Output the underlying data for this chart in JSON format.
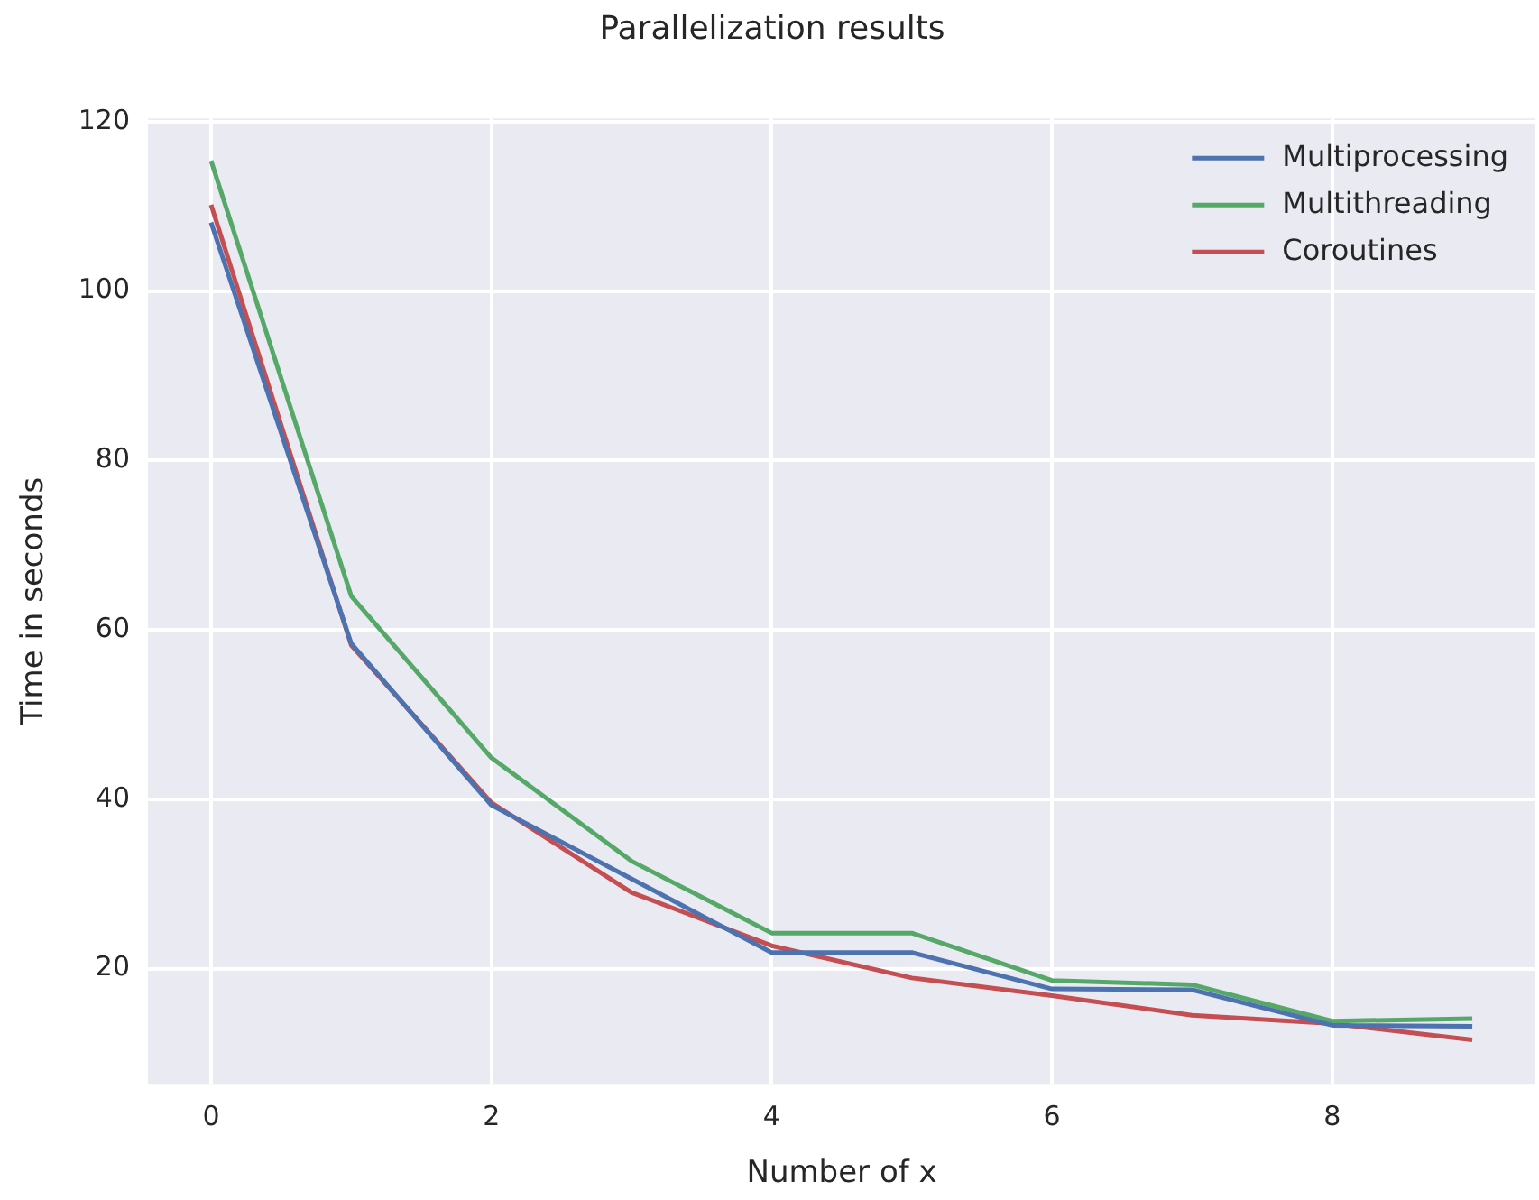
{
  "chart_data": {
    "type": "line",
    "title": "Parallelization results",
    "xlabel": "Number of x",
    "ylabel": "Time in seconds",
    "x": [
      0,
      1,
      2,
      3,
      4,
      5,
      6,
      7,
      8,
      9
    ],
    "series": [
      {
        "name": "Multiprocessing",
        "color": "#4c72b0",
        "values": [
          108.1,
          58.4,
          39.3,
          30.6,
          21.9,
          21.9,
          17.6,
          17.5,
          13.3,
          13.2
        ]
      },
      {
        "name": "Multithreading",
        "color": "#55a868",
        "values": [
          115.4,
          64.0,
          44.9,
          32.7,
          24.2,
          24.2,
          18.6,
          18.1,
          13.8,
          14.1
        ]
      },
      {
        "name": "Coroutines",
        "color": "#c44e52",
        "values": [
          110.2,
          58.2,
          39.6,
          29.0,
          22.7,
          18.9,
          16.8,
          14.5,
          13.5,
          11.6
        ]
      }
    ],
    "xlim": [
      -0.45,
      9.45
    ],
    "xticks": [
      0,
      2,
      4,
      6,
      8
    ],
    "ylim": [
      6.4,
      120.4
    ],
    "yticks": [
      20,
      40,
      60,
      80,
      100,
      120
    ],
    "grid": true,
    "legend": "top right",
    "marker": "none",
    "line_style": "solid"
  }
}
